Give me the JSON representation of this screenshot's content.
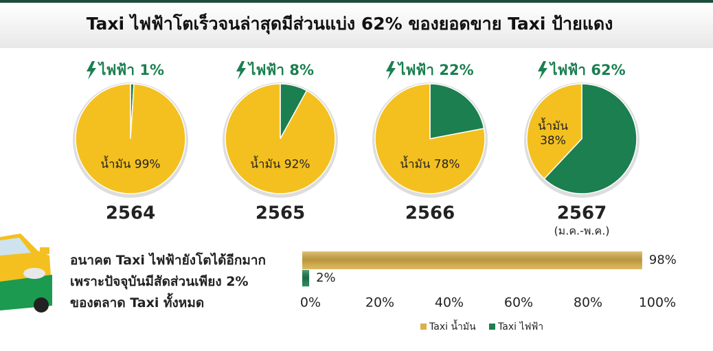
{
  "title": "Taxi ไฟฟ้าโตเร็วจนล่าสุดมีส่วนแบ่ง 62% ของยอดขาย Taxi ป้ายแดง",
  "chart_data": [
    {
      "type": "pie",
      "title": "2564",
      "values": [
        1,
        99
      ],
      "value_labels": [
        "ไฟฟ้า 1%",
        "น้ำมัน 99%"
      ],
      "colors": [
        "#1b7f50",
        "#f4c020"
      ]
    },
    {
      "type": "pie",
      "title": "2565",
      "values": [
        8,
        92
      ],
      "value_labels": [
        "ไฟฟ้า 8%",
        "น้ำมัน 92%"
      ],
      "colors": [
        "#1b7f50",
        "#f4c020"
      ]
    },
    {
      "type": "pie",
      "title": "2566",
      "values": [
        22,
        78
      ],
      "value_labels": [
        "ไฟฟ้า 22%",
        "น้ำมัน 78%"
      ],
      "colors": [
        "#1b7f50",
        "#f4c020"
      ]
    },
    {
      "type": "pie",
      "title": "2567",
      "subtitle": "(ม.ค.-พ.ค.)",
      "values": [
        62,
        38
      ],
      "value_labels": [
        "ไฟฟ้า 62%",
        "น้ำมัน 38%"
      ],
      "colors": [
        "#1b7f50",
        "#f4c020"
      ]
    },
    {
      "type": "bar",
      "orientation": "horizontal",
      "annotation": [
        "อนาคต Taxi ไฟฟ้ายังโตได้อีกมาก",
        "เพราะปัจจุบันมีสัดส่วนเพียง 2%",
        "ของตลาด Taxi ทั้งหมด"
      ],
      "series": [
        {
          "name": "Taxi น้ำมัน",
          "color": "#d9b04a",
          "values": [
            98
          ],
          "value_labels": [
            "98%"
          ]
        },
        {
          "name": "Taxi ไฟฟ้า",
          "color": "#1b7f50",
          "values": [
            2
          ],
          "value_labels": [
            "2%"
          ]
        }
      ],
      "xlim": [
        0,
        100
      ],
      "xticks": [
        {
          "value": 0,
          "label": "0%"
        },
        {
          "value": 20,
          "label": "20%"
        },
        {
          "value": 40,
          "label": "40%"
        },
        {
          "value": 60,
          "label": "60%"
        },
        {
          "value": 80,
          "label": "80%"
        },
        {
          "value": 100,
          "label": "100%"
        }
      ],
      "legend": "bottom"
    }
  ]
}
